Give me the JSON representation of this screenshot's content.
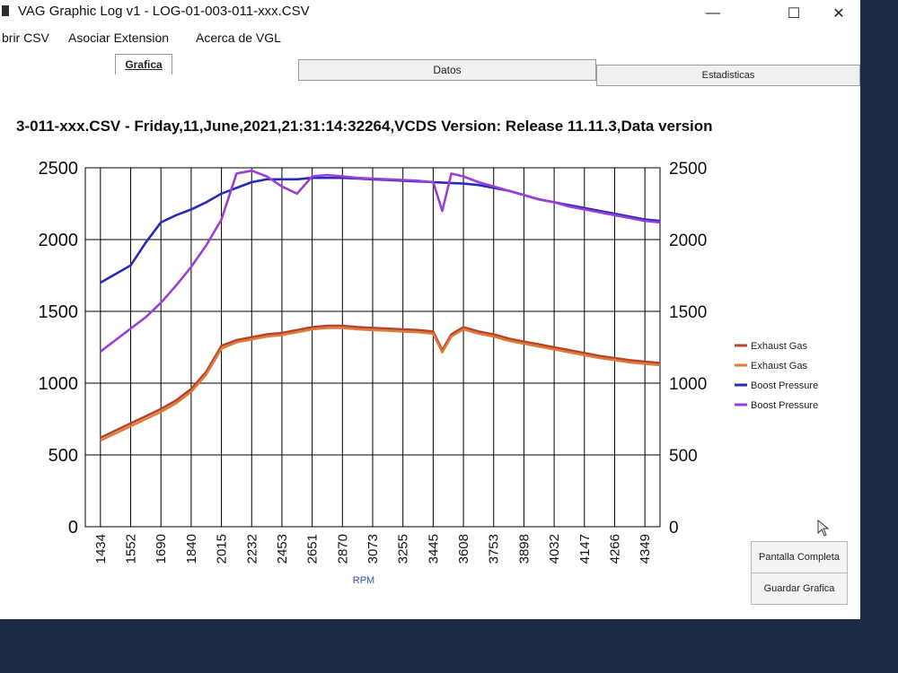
{
  "window": {
    "title": "VAG Graphic Log  v1 -  LOG-01-003-011-xxx.CSV",
    "minimize_glyph": "—",
    "maximize_glyph": "☐",
    "close_glyph": "✕"
  },
  "menu": [
    "brir CSV",
    "Asociar Extension",
    "Acerca de VGL"
  ],
  "tabs": [
    {
      "label": "Grafica",
      "active": true
    },
    {
      "label": "Datos",
      "active": false
    },
    {
      "label": "Estadisticas",
      "active": false
    }
  ],
  "chart_heading": "3-011-xxx.CSV - Friday,11,June,2021,21:31:14:32264,VCDS Version: Release 11.11.3,Data version",
  "buttons": {
    "fullscreen": "Pantalla Completa",
    "save": "Guardar Grafica"
  },
  "colors": {
    "exhaust_1": "#b5452a",
    "exhaust_2": "#e07a3a",
    "boost_1": "#2a2ab8",
    "boost_2": "#9a3fd6",
    "grid": "#000000"
  },
  "chart_data": {
    "type": "line",
    "title": "",
    "xlabel": "RPM",
    "ylabel_left": "",
    "ylabel_right": "",
    "x_ticks": [
      "1434",
      "1552",
      "1690",
      "1840",
      "2015",
      "2232",
      "2453",
      "2651",
      "2870",
      "3073",
      "3255",
      "3445",
      "3608",
      "3753",
      "3898",
      "4032",
      "4147",
      "4266",
      "4349"
    ],
    "y_left_ticks": [
      0,
      500,
      1000,
      1500,
      2000,
      2500
    ],
    "y_right_ticks": [
      0,
      500,
      1000,
      1500,
      2000,
      2500
    ],
    "ylim_left": [
      0,
      2500
    ],
    "ylim_right": [
      0,
      2500
    ],
    "grid": true,
    "legend_position": "right",
    "series": [
      {
        "name": "Exhaust Gas",
        "color": "#b5452a",
        "axis": "left",
        "points": [
          [
            0,
            620
          ],
          [
            0.5,
            670
          ],
          [
            1,
            720
          ],
          [
            1.5,
            770
          ],
          [
            2,
            820
          ],
          [
            2.5,
            880
          ],
          [
            3,
            960
          ],
          [
            3.5,
            1080
          ],
          [
            4,
            1260
          ],
          [
            4.5,
            1300
          ],
          [
            5,
            1320
          ],
          [
            5.5,
            1340
          ],
          [
            6,
            1350
          ],
          [
            6.5,
            1370
          ],
          [
            7,
            1390
          ],
          [
            7.5,
            1400
          ],
          [
            8,
            1400
          ],
          [
            8.5,
            1390
          ],
          [
            9,
            1385
          ],
          [
            9.5,
            1380
          ],
          [
            10,
            1375
          ],
          [
            10.5,
            1370
          ],
          [
            11,
            1360
          ],
          [
            11.3,
            1230
          ],
          [
            11.6,
            1340
          ],
          [
            12,
            1390
          ],
          [
            12.5,
            1360
          ],
          [
            13,
            1340
          ],
          [
            13.5,
            1310
          ],
          [
            14,
            1290
          ],
          [
            14.5,
            1270
          ],
          [
            15,
            1250
          ],
          [
            15.5,
            1230
          ],
          [
            16,
            1210
          ],
          [
            16.5,
            1190
          ],
          [
            17,
            1175
          ],
          [
            17.5,
            1160
          ],
          [
            18,
            1150
          ],
          [
            18.5,
            1140
          ]
        ]
      },
      {
        "name": "Exhaust Gas",
        "color": "#e07a3a",
        "axis": "right",
        "points": [
          [
            0,
            600
          ],
          [
            0.5,
            650
          ],
          [
            1,
            700
          ],
          [
            1.5,
            750
          ],
          [
            2,
            800
          ],
          [
            2.5,
            860
          ],
          [
            3,
            940
          ],
          [
            3.5,
            1060
          ],
          [
            4,
            1240
          ],
          [
            4.5,
            1285
          ],
          [
            5,
            1305
          ],
          [
            5.5,
            1325
          ],
          [
            6,
            1335
          ],
          [
            6.5,
            1355
          ],
          [
            7,
            1375
          ],
          [
            7.5,
            1385
          ],
          [
            8,
            1385
          ],
          [
            8.5,
            1375
          ],
          [
            9,
            1370
          ],
          [
            9.5,
            1365
          ],
          [
            10,
            1360
          ],
          [
            10.5,
            1355
          ],
          [
            11,
            1345
          ],
          [
            11.3,
            1215
          ],
          [
            11.6,
            1325
          ],
          [
            12,
            1375
          ],
          [
            12.5,
            1345
          ],
          [
            13,
            1325
          ],
          [
            13.5,
            1295
          ],
          [
            14,
            1275
          ],
          [
            14.5,
            1255
          ],
          [
            15,
            1235
          ],
          [
            15.5,
            1215
          ],
          [
            16,
            1195
          ],
          [
            16.5,
            1175
          ],
          [
            17,
            1160
          ],
          [
            17.5,
            1145
          ],
          [
            18,
            1135
          ],
          [
            18.5,
            1125
          ]
        ]
      },
      {
        "name": "Boost Pressure",
        "color": "#2a2ab8",
        "axis": "left",
        "points": [
          [
            0,
            1700
          ],
          [
            0.5,
            1760
          ],
          [
            1,
            1820
          ],
          [
            1.5,
            1980
          ],
          [
            2,
            2120
          ],
          [
            2.5,
            2170
          ],
          [
            3,
            2210
          ],
          [
            3.5,
            2260
          ],
          [
            4,
            2320
          ],
          [
            4.5,
            2360
          ],
          [
            5,
            2400
          ],
          [
            5.5,
            2420
          ],
          [
            6,
            2420
          ],
          [
            6.5,
            2420
          ],
          [
            7,
            2430
          ],
          [
            7.5,
            2430
          ],
          [
            8,
            2430
          ],
          [
            8.5,
            2425
          ],
          [
            9,
            2420
          ],
          [
            9.5,
            2415
          ],
          [
            10,
            2410
          ],
          [
            10.5,
            2405
          ],
          [
            11,
            2400
          ],
          [
            11.5,
            2395
          ],
          [
            12,
            2390
          ],
          [
            12.5,
            2380
          ],
          [
            13,
            2360
          ],
          [
            13.5,
            2340
          ],
          [
            14,
            2310
          ],
          [
            14.5,
            2280
          ],
          [
            15,
            2260
          ],
          [
            15.5,
            2240
          ],
          [
            16,
            2220
          ],
          [
            16.5,
            2200
          ],
          [
            17,
            2180
          ],
          [
            17.5,
            2160
          ],
          [
            18,
            2140
          ],
          [
            18.5,
            2130
          ]
        ]
      },
      {
        "name": "Boost Pressure",
        "color": "#9a3fd6",
        "axis": "right",
        "points": [
          [
            0,
            1220
          ],
          [
            0.5,
            1300
          ],
          [
            1,
            1380
          ],
          [
            1.5,
            1460
          ],
          [
            2,
            1560
          ],
          [
            2.5,
            1680
          ],
          [
            3,
            1810
          ],
          [
            3.5,
            1960
          ],
          [
            4,
            2140
          ],
          [
            4.5,
            2460
          ],
          [
            5,
            2480
          ],
          [
            5.5,
            2440
          ],
          [
            6,
            2370
          ],
          [
            6.5,
            2320
          ],
          [
            7,
            2440
          ],
          [
            7.5,
            2450
          ],
          [
            8,
            2440
          ],
          [
            8.5,
            2430
          ],
          [
            9,
            2425
          ],
          [
            9.5,
            2420
          ],
          [
            10,
            2415
          ],
          [
            10.5,
            2410
          ],
          [
            11,
            2400
          ],
          [
            11.3,
            2200
          ],
          [
            11.6,
            2460
          ],
          [
            12,
            2440
          ],
          [
            12.5,
            2400
          ],
          [
            13,
            2370
          ],
          [
            13.5,
            2340
          ],
          [
            14,
            2310
          ],
          [
            14.5,
            2280
          ],
          [
            15,
            2260
          ],
          [
            15.5,
            2230
          ],
          [
            16,
            2210
          ],
          [
            16.5,
            2190
          ],
          [
            17,
            2170
          ],
          [
            17.5,
            2150
          ],
          [
            18,
            2130
          ],
          [
            18.5,
            2120
          ]
        ]
      }
    ]
  }
}
